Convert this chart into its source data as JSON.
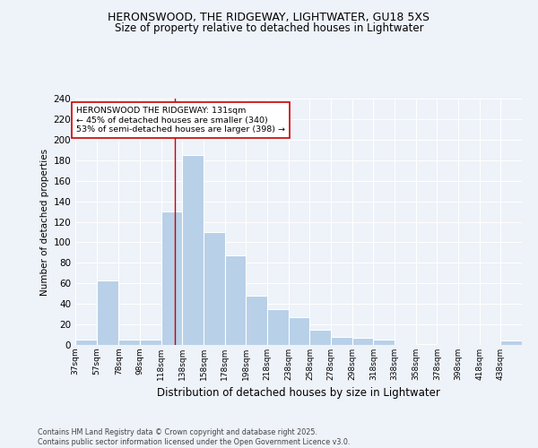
{
  "title1": "HERONSWOOD, THE RIDGEWAY, LIGHTWATER, GU18 5XS",
  "title2": "Size of property relative to detached houses in Lightwater",
  "xlabel": "Distribution of detached houses by size in Lightwater",
  "ylabel": "Number of detached properties",
  "annotation_line1": "HERONSWOOD THE RIDGEWAY: 131sqm",
  "annotation_line2": "← 45% of detached houses are smaller (340)",
  "annotation_line3": "53% of semi-detached houses are larger (398) →",
  "footer": "Contains HM Land Registry data © Crown copyright and database right 2025.\nContains public sector information licensed under the Open Government Licence v3.0.",
  "bin_labels": [
    "37sqm",
    "57sqm",
    "78sqm",
    "98sqm",
    "118sqm",
    "138sqm",
    "158sqm",
    "178sqm",
    "198sqm",
    "218sqm",
    "238sqm",
    "258sqm",
    "278sqm",
    "298sqm",
    "318sqm",
    "338sqm",
    "358sqm",
    "378sqm",
    "398sqm",
    "418sqm",
    "438sqm"
  ],
  "bin_edges": [
    37,
    57,
    78,
    98,
    118,
    138,
    158,
    178,
    198,
    218,
    238,
    258,
    278,
    298,
    318,
    338,
    358,
    378,
    398,
    418,
    438,
    458
  ],
  "values": [
    5,
    63,
    5,
    5,
    130,
    185,
    110,
    87,
    48,
    35,
    27,
    15,
    8,
    7,
    5,
    0,
    1,
    0,
    0,
    0,
    4
  ],
  "bar_color": "#b8d0e8",
  "redline_x": 131,
  "ylim": [
    0,
    240
  ],
  "yticks": [
    0,
    20,
    40,
    60,
    80,
    100,
    120,
    140,
    160,
    180,
    200,
    220,
    240
  ],
  "background_color": "#eef2f9",
  "grid_color": "#ffffff",
  "annotation_box_color": "#ffffff",
  "annotation_box_edgecolor": "#cc0000"
}
